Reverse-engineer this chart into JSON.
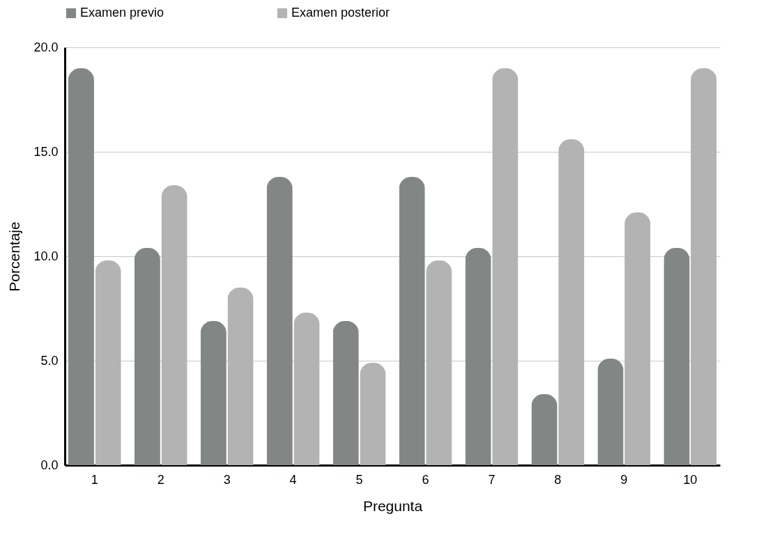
{
  "chart_data": {
    "type": "bar",
    "xlabel": "Pregunta",
    "ylabel": "Porcentaje",
    "categories": [
      "1",
      "2",
      "3",
      "4",
      "5",
      "6",
      "7",
      "8",
      "9",
      "10"
    ],
    "series": [
      {
        "name": "Examen previo",
        "color": "#828785",
        "values": [
          19.0,
          10.4,
          6.9,
          13.8,
          6.9,
          13.8,
          10.4,
          3.4,
          5.1,
          10.4
        ]
      },
      {
        "name": "Examen posterior",
        "color": "#b3b3b3",
        "values": [
          9.8,
          13.4,
          8.5,
          7.3,
          4.9,
          9.8,
          19.0,
          15.6,
          12.1,
          19.0
        ]
      }
    ],
    "ylim": [
      0,
      20
    ],
    "yticks": [
      {
        "value": 0,
        "label": "0.0"
      },
      {
        "value": 5,
        "label": "5.0"
      },
      {
        "value": 10,
        "label": "10.0"
      },
      {
        "value": 15,
        "label": "15.0"
      },
      {
        "value": 20,
        "label": "20.0"
      }
    ],
    "grid": "y",
    "legend": "top"
  }
}
